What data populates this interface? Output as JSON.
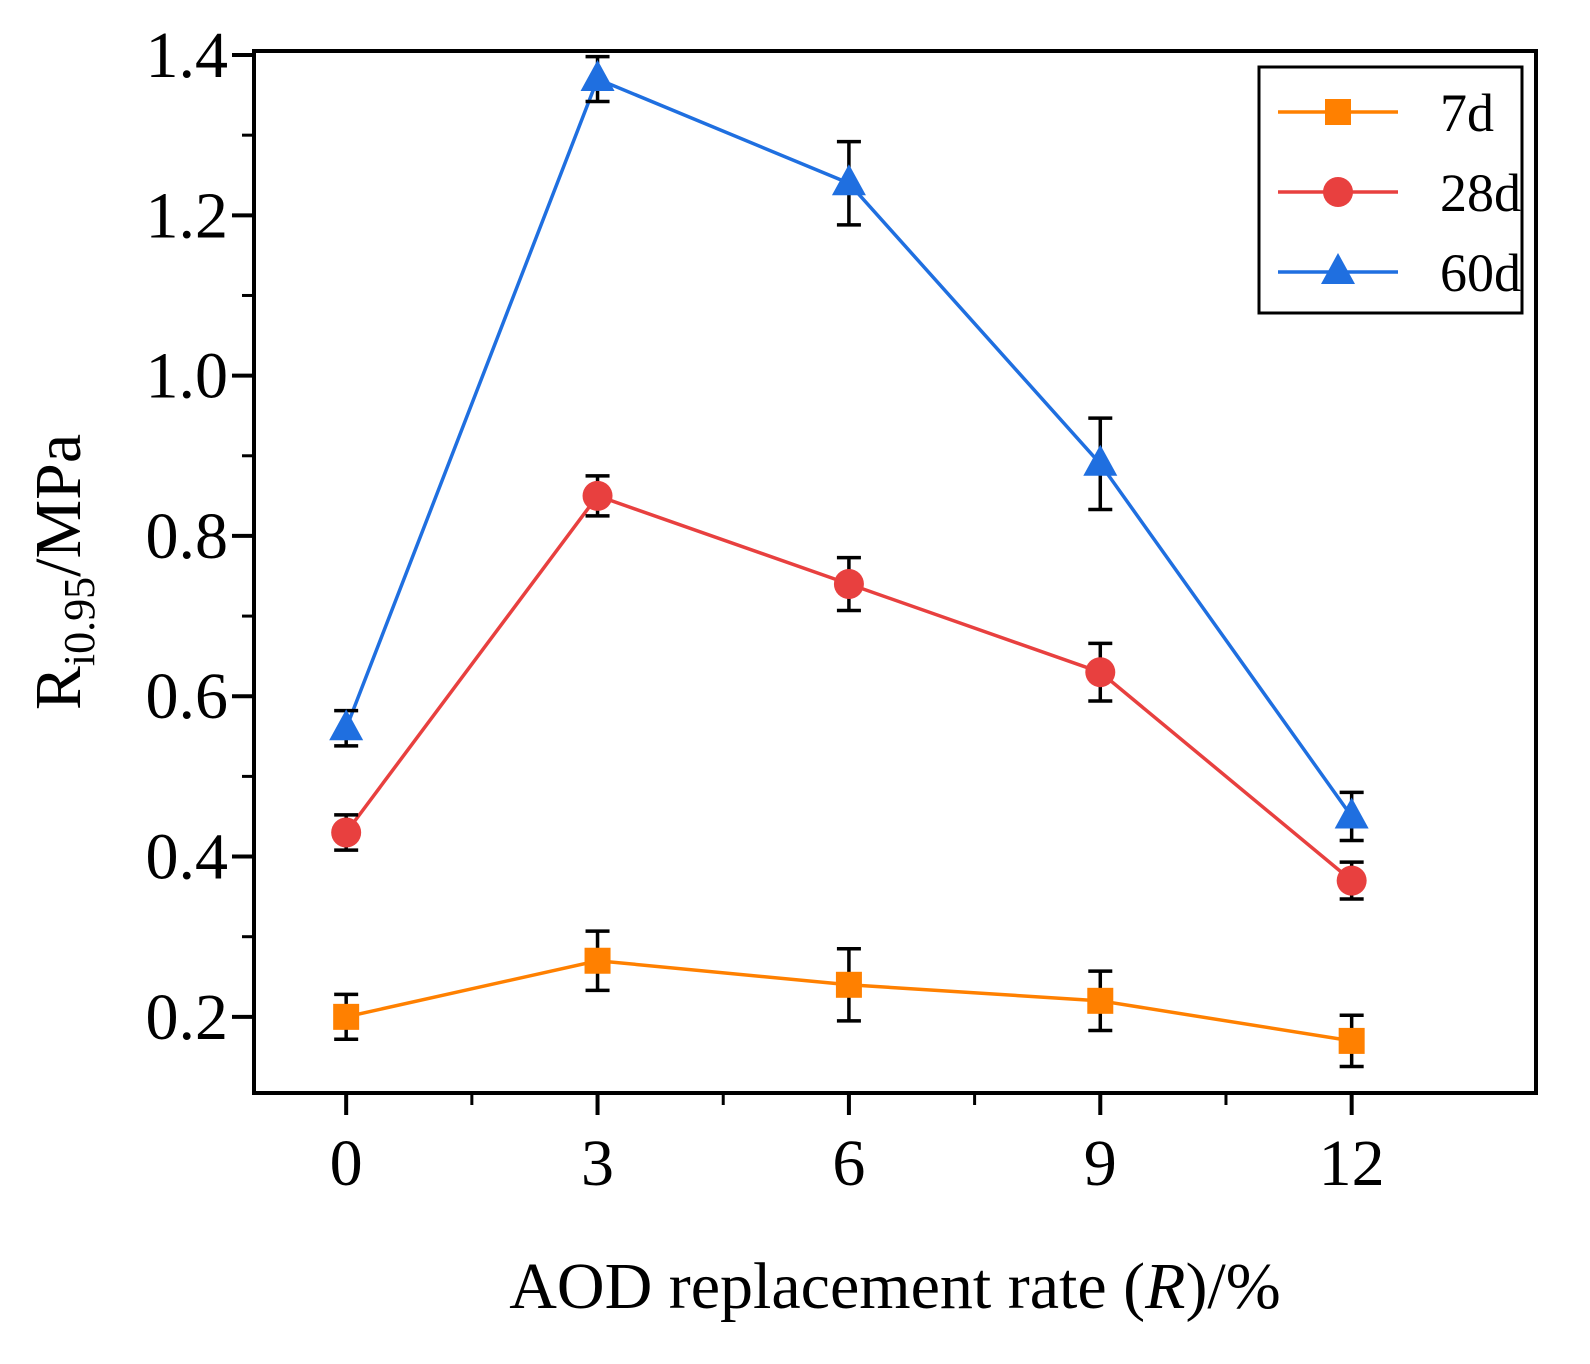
{
  "chart_data": {
    "type": "line",
    "title": "",
    "xlabel": {
      "prefix": "AOD replacement rate (",
      "italic": "R",
      "suffix": ")/%"
    },
    "ylabel": {
      "main": "R",
      "subscript": "i0.95",
      "suffix": "/MPa"
    },
    "x": [
      0,
      3,
      6,
      9,
      12
    ],
    "xticks": [
      "0",
      "3",
      "6",
      "9",
      "12"
    ],
    "yticks": [
      "0.2",
      "0.4",
      "0.6",
      "0.8",
      "1.0",
      "1.2",
      "1.4"
    ],
    "ytick_values": [
      0.2,
      0.4,
      0.6,
      0.8,
      1.0,
      1.2,
      1.4
    ],
    "xlim": [
      -1.1,
      14.2
    ],
    "ylim": [
      0.105,
      1.405
    ],
    "legend_position": "top-right",
    "series": [
      {
        "name": "7d",
        "color": "#FF8000",
        "marker": "square",
        "values": [
          0.2,
          0.27,
          0.24,
          0.22,
          0.17
        ],
        "errors": [
          0.028,
          0.037,
          0.045,
          0.037,
          0.032
        ]
      },
      {
        "name": "28d",
        "color": "#E8403F",
        "marker": "circle",
        "values": [
          0.43,
          0.85,
          0.74,
          0.63,
          0.37
        ],
        "errors": [
          0.022,
          0.025,
          0.033,
          0.036,
          0.023
        ]
      },
      {
        "name": "60d",
        "color": "#1F6FE0",
        "marker": "triangle",
        "values": [
          0.56,
          1.37,
          1.24,
          0.89,
          0.45
        ],
        "errors": [
          0.022,
          0.028,
          0.052,
          0.057,
          0.03
        ]
      }
    ]
  }
}
